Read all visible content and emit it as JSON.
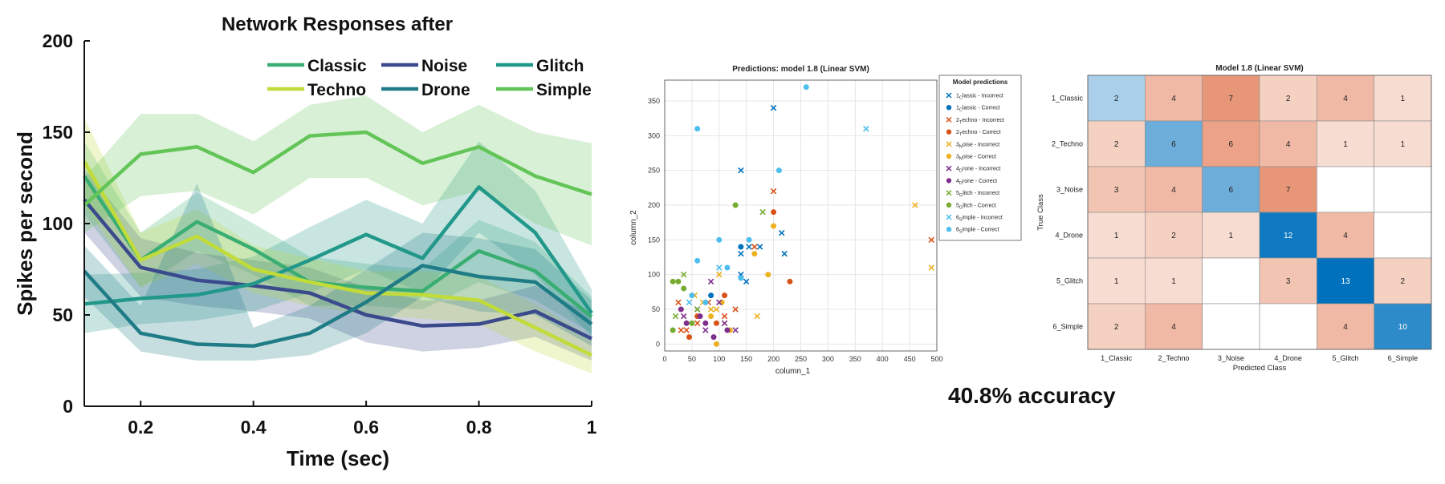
{
  "accuracy_text": "40.8% accuracy",
  "chart_data": [
    {
      "type": "line",
      "title": "Network Responses after",
      "xlabel": "Time (sec)",
      "ylabel": "Spikes per second",
      "xlim": [
        0.1,
        1.0
      ],
      "ylim": [
        0,
        200
      ],
      "xticks": [
        0.2,
        0.4,
        0.6,
        0.8,
        1
      ],
      "xtick_labels": [
        "0.2",
        "0.4",
        "0.6",
        "0.8",
        "1"
      ],
      "yticks": [
        0,
        50,
        100,
        150,
        200
      ],
      "ytick_labels": [
        "0",
        "50",
        "100",
        "150",
        "200"
      ],
      "legend_position": "top-right",
      "x": [
        0.1,
        0.2,
        0.3,
        0.4,
        0.5,
        0.6,
        0.7,
        0.8,
        0.9,
        1.0
      ],
      "series": [
        {
          "name": "Classic",
          "color": "#3aae72",
          "values": [
            126,
            80,
            101,
            86,
            68,
            65,
            63,
            85,
            74,
            49
          ],
          "lower": [
            105,
            65,
            85,
            72,
            55,
            55,
            53,
            68,
            58,
            40
          ],
          "upper": [
            145,
            95,
            117,
            100,
            82,
            78,
            75,
            102,
            90,
            60
          ]
        },
        {
          "name": "Noise",
          "color": "#3a4a8c",
          "values": [
            113,
            76,
            69,
            66,
            62,
            50,
            44,
            45,
            52,
            37
          ],
          "lower": [
            95,
            60,
            55,
            52,
            48,
            35,
            30,
            32,
            38,
            25
          ],
          "upper": [
            130,
            92,
            84,
            80,
            76,
            65,
            58,
            58,
            66,
            50
          ]
        },
        {
          "name": "Glitch",
          "color": "#22988a",
          "values": [
            56,
            59,
            61,
            67,
            80,
            94,
            81,
            120,
            95,
            51
          ],
          "lower": [
            40,
            45,
            47,
            52,
            62,
            75,
            62,
            95,
            72,
            38
          ],
          "upper": [
            72,
            73,
            75,
            82,
            98,
            113,
            100,
            145,
            118,
            64
          ]
        },
        {
          "name": "Techno",
          "color": "#c1dc3a",
          "values": [
            134,
            80,
            93,
            75,
            68,
            62,
            61,
            58,
            43,
            28
          ],
          "lower": [
            110,
            65,
            78,
            62,
            55,
            50,
            48,
            45,
            30,
            18
          ],
          "upper": [
            158,
            95,
            108,
            88,
            81,
            74,
            74,
            71,
            56,
            38
          ]
        },
        {
          "name": "Drone",
          "color": "#1f7c86",
          "values": [
            74,
            40,
            34,
            33,
            40,
            57,
            77,
            71,
            68,
            45
          ],
          "lower": [
            60,
            30,
            25,
            25,
            28,
            40,
            60,
            52,
            50,
            33
          ],
          "upper": [
            88,
            55,
            122,
            43,
            55,
            75,
            95,
            92,
            86,
            58
          ]
        },
        {
          "name": "Simple",
          "color": "#63c558",
          "values": [
            110,
            138,
            142,
            128,
            148,
            150,
            133,
            142,
            126,
            116
          ],
          "lower": [
            95,
            115,
            118,
            105,
            125,
            125,
            110,
            118,
            100,
            88
          ],
          "upper": [
            125,
            160,
            160,
            145,
            165,
            170,
            150,
            165,
            150,
            144
          ]
        }
      ]
    },
    {
      "type": "scatter",
      "title": "Predictions: model 1.8 (Linear SVM)",
      "xlabel": "column_1",
      "ylabel": "column_2",
      "xlim": [
        0,
        500
      ],
      "ylim": [
        -10,
        380
      ],
      "xticks": [
        0,
        50,
        100,
        150,
        200,
        250,
        300,
        350,
        400,
        450,
        500
      ],
      "yticks": [
        0,
        50,
        100,
        150,
        200,
        250,
        300,
        350
      ],
      "grid": true,
      "legend_title": "Model predictions",
      "legend_position": "outside-right",
      "series": [
        {
          "name": "1_Classic - Incorrect",
          "sub_base": "1",
          "sub": "C",
          "rest": "lassic - Incorrect",
          "marker": "x",
          "color": "#0072bd",
          "points": [
            [
              140,
              250
            ],
            [
              200,
              340
            ],
            [
              155,
              140
            ],
            [
              215,
              160
            ],
            [
              175,
              140
            ],
            [
              140,
              100
            ],
            [
              150,
              90
            ],
            [
              220,
              130
            ],
            [
              140,
              130
            ]
          ]
        },
        {
          "name": "1_Classic - Correct",
          "sub_base": "1",
          "sub": "C",
          "rest": "lassic - Correct",
          "marker": "o",
          "color": "#0072bd",
          "points": [
            [
              140,
              140
            ],
            [
              85,
              70
            ]
          ]
        },
        {
          "name": "2_Techno - Incorrect",
          "sub_base": "2",
          "sub": "T",
          "rest": "echno - Incorrect",
          "marker": "x",
          "color": "#d95319",
          "points": [
            [
              200,
              220
            ],
            [
              490,
              150
            ],
            [
              165,
              140
            ],
            [
              130,
              50
            ],
            [
              25,
              60
            ],
            [
              40,
              20
            ],
            [
              60,
              30
            ],
            [
              80,
              60
            ],
            [
              110,
              40
            ],
            [
              30,
              20
            ]
          ]
        },
        {
          "name": "2_Techno - Correct",
          "sub_base": "2",
          "sub": "T",
          "rest": "echno - Correct",
          "marker": "o",
          "color": "#d95319",
          "points": [
            [
              200,
              190
            ],
            [
              230,
              90
            ],
            [
              45,
              10
            ],
            [
              95,
              30
            ],
            [
              110,
              70
            ],
            [
              60,
              40
            ]
          ]
        },
        {
          "name": "3_Noise - Incorrect",
          "sub_base": "3",
          "sub": "N",
          "rest": "oise - Incorrect",
          "marker": "x",
          "color": "#edb120",
          "points": [
            [
              460,
              200
            ],
            [
              490,
              110
            ],
            [
              100,
              100
            ],
            [
              170,
              40
            ],
            [
              70,
              60
            ],
            [
              95,
              50
            ],
            [
              110,
              30
            ],
            [
              85,
              50
            ],
            [
              55,
              70
            ]
          ]
        },
        {
          "name": "3_Noise - Correct",
          "sub_base": "3",
          "sub": "N",
          "rest": "oise - Correct",
          "marker": "o",
          "color": "#edb120",
          "points": [
            [
              200,
              170
            ],
            [
              165,
              130
            ],
            [
              190,
              100
            ],
            [
              95,
              0
            ],
            [
              85,
              40
            ],
            [
              120,
              20
            ],
            [
              105,
              60
            ]
          ]
        },
        {
          "name": "4_Drone - Incorrect",
          "sub_base": "4",
          "sub": "D",
          "rest": "rone - Incorrect",
          "marker": "x",
          "color": "#7e2f8e",
          "points": [
            [
              85,
              90
            ],
            [
              100,
              60
            ],
            [
              130,
              20
            ],
            [
              35,
              40
            ],
            [
              60,
              50
            ],
            [
              75,
              20
            ],
            [
              110,
              30
            ]
          ]
        },
        {
          "name": "4_Drone - Correct",
          "sub_base": "4",
          "sub": "D",
          "rest": "rone - Correct",
          "marker": "o",
          "color": "#7e2f8e",
          "points": [
            [
              30,
              50
            ],
            [
              75,
              30
            ],
            [
              90,
              10
            ],
            [
              115,
              20
            ],
            [
              40,
              30
            ],
            [
              65,
              40
            ]
          ]
        },
        {
          "name": "5_Glitch - Incorrect",
          "sub_base": "5",
          "sub": "G",
          "rest": "litch - Incorrect",
          "marker": "x",
          "color": "#77ac30",
          "points": [
            [
              180,
              190
            ],
            [
              35,
              100
            ],
            [
              60,
              50
            ],
            [
              20,
              40
            ]
          ]
        },
        {
          "name": "5_Glitch - Correct",
          "sub_base": "5",
          "sub": "G",
          "rest": "litch - Correct",
          "marker": "o",
          "color": "#77ac30",
          "points": [
            [
              130,
              200
            ],
            [
              15,
              90
            ],
            [
              25,
              90
            ],
            [
              35,
              80
            ],
            [
              15,
              20
            ],
            [
              50,
              30
            ]
          ]
        },
        {
          "name": "6_Simple - Incorrect",
          "sub_base": "6",
          "sub": "S",
          "rest": "imple - Incorrect",
          "marker": "x",
          "color": "#4dbeee",
          "points": [
            [
              370,
              310
            ],
            [
              45,
              60
            ],
            [
              100,
              110
            ]
          ]
        },
        {
          "name": "6_Simple - Correct",
          "sub_base": "6",
          "sub": "S",
          "rest": "imple - Correct",
          "marker": "o",
          "color": "#4dbeee",
          "points": [
            [
              260,
              370
            ],
            [
              60,
              310
            ],
            [
              210,
              250
            ],
            [
              100,
              150
            ],
            [
              155,
              150
            ],
            [
              60,
              120
            ],
            [
              115,
              110
            ],
            [
              140,
              95
            ],
            [
              50,
              70
            ],
            [
              75,
              60
            ]
          ]
        }
      ]
    },
    {
      "type": "heatmap",
      "title": "Model 1.8 (Linear SVM)",
      "xlabel": "Predicted Class",
      "ylabel": "True Class",
      "row_labels": [
        "1_Classic",
        "2_Techno",
        "3_Noise",
        "4_Drone",
        "5_Glitch",
        "6_Simple"
      ],
      "col_labels": [
        "1_Classic",
        "2_Techno",
        "3_Noise",
        "4_Drone",
        "5_Glitch",
        "6_Simple"
      ],
      "values": [
        [
          2,
          4,
          7,
          2,
          4,
          1
        ],
        [
          2,
          6,
          6,
          4,
          1,
          1
        ],
        [
          3,
          4,
          6,
          7,
          null,
          null
        ],
        [
          1,
          2,
          1,
          12,
          4,
          null
        ],
        [
          1,
          1,
          null,
          3,
          13,
          2
        ],
        [
          2,
          4,
          null,
          null,
          4,
          10
        ]
      ]
    }
  ]
}
